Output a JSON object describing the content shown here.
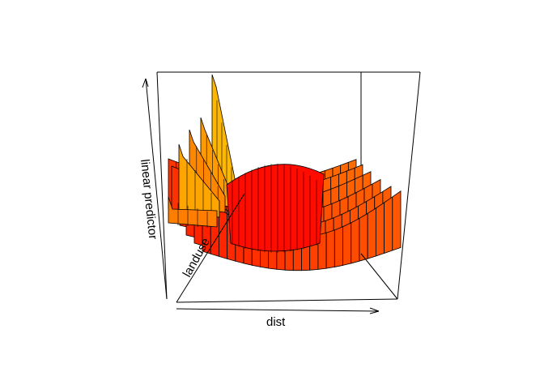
{
  "chart_data": {
    "type": "surface-3d",
    "xlabel": "dist",
    "ylabel": "landuse",
    "zlabel": "linear predictor",
    "colors": {
      "low": "#ff0000",
      "mid": "#ff6a00",
      "high": "#ffcc00",
      "edge": "#000000",
      "box": "#000000"
    },
    "grid": false,
    "legend": "none"
  }
}
